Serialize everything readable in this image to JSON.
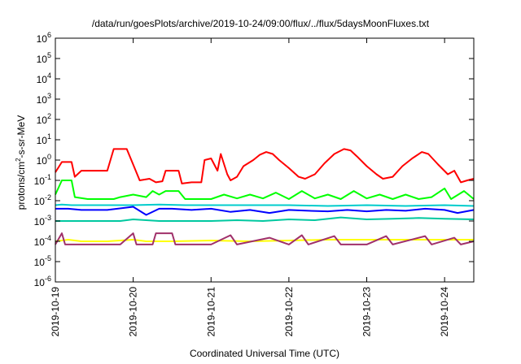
{
  "chart_data": {
    "type": "line",
    "title": "/data/run/goesPlots/archive/2019-10-24/09:00/flux/../flux/5daysMoonFluxes.txt",
    "xlabel": "Coordinated Universal Time (UTC)",
    "ylabel_parts": {
      "before": "protons/cm",
      "sup": "2",
      "after": "-s-sr-MeV"
    },
    "y_scale": "log",
    "ylim": [
      1e-06,
      1000000.0
    ],
    "y_ticks": [
      {
        "base": "10",
        "exp": "-6"
      },
      {
        "base": "10",
        "exp": "-5"
      },
      {
        "base": "10",
        "exp": "-4"
      },
      {
        "base": "10",
        "exp": "-3"
      },
      {
        "base": "10",
        "exp": "-2"
      },
      {
        "base": "10",
        "exp": "-1"
      },
      {
        "base": "10",
        "exp": "0"
      },
      {
        "base": "10",
        "exp": "1"
      },
      {
        "base": "10",
        "exp": "2"
      },
      {
        "base": "10",
        "exp": "3"
      },
      {
        "base": "10",
        "exp": "4"
      },
      {
        "base": "10",
        "exp": "5"
      },
      {
        "base": "10",
        "exp": "6"
      }
    ],
    "xlim": [
      "2019-10-19",
      "2019-10-24 09:00"
    ],
    "x_ticks": [
      "2019-10-19",
      "2019-10-20",
      "2019-10-21",
      "2019-10-22",
      "2019-10-23",
      "2019-10-24"
    ],
    "grid": false,
    "series": [
      {
        "color": "#ff0000",
        "points": [
          [
            "2019-10-19 00:00",
            0.25
          ],
          [
            "2019-10-19 02:00",
            0.8
          ],
          [
            "2019-10-19 05:00",
            0.8
          ],
          [
            "2019-10-19 06:00",
            0.15
          ],
          [
            "2019-10-19 08:00",
            0.3
          ],
          [
            "2019-10-19 16:00",
            0.3
          ],
          [
            "2019-10-19 18:00",
            3.5
          ],
          [
            "2019-10-19 22:00",
            3.5
          ],
          [
            "2019-10-20 00:00",
            0.6
          ],
          [
            "2019-10-20 02:00",
            0.1
          ],
          [
            "2019-10-20 05:00",
            0.12
          ],
          [
            "2019-10-20 07:00",
            0.08
          ],
          [
            "2019-10-20 09:00",
            0.09
          ],
          [
            "2019-10-20 10:00",
            0.3
          ],
          [
            "2019-10-20 14:00",
            0.3
          ],
          [
            "2019-10-20 15:00",
            0.07
          ],
          [
            "2019-10-20 18:00",
            0.08
          ],
          [
            "2019-10-20 21:00",
            0.08
          ],
          [
            "2019-10-20 22:00",
            1.0
          ],
          [
            "2019-10-21 00:00",
            1.2
          ],
          [
            "2019-10-21 02:00",
            0.3
          ],
          [
            "2019-10-21 03:00",
            2.0
          ],
          [
            "2019-10-21 05:00",
            0.2
          ],
          [
            "2019-10-21 06:00",
            0.1
          ],
          [
            "2019-10-21 08:00",
            0.15
          ],
          [
            "2019-10-21 10:00",
            0.5
          ],
          [
            "2019-10-21 13:00",
            1.0
          ],
          [
            "2019-10-21 15:00",
            1.8
          ],
          [
            "2019-10-21 17:00",
            2.5
          ],
          [
            "2019-10-21 19:00",
            2.0
          ],
          [
            "2019-10-21 21:00",
            1.0
          ],
          [
            "2019-10-22 00:00",
            0.4
          ],
          [
            "2019-10-22 03:00",
            0.15
          ],
          [
            "2019-10-22 05:00",
            0.12
          ],
          [
            "2019-10-22 08:00",
            0.2
          ],
          [
            "2019-10-22 11:00",
            0.7
          ],
          [
            "2019-10-22 14:00",
            2.0
          ],
          [
            "2019-10-22 17:00",
            3.5
          ],
          [
            "2019-10-22 19:00",
            3.0
          ],
          [
            "2019-10-22 21:00",
            1.5
          ],
          [
            "2019-10-23 00:00",
            0.5
          ],
          [
            "2019-10-23 03:00",
            0.2
          ],
          [
            "2019-10-23 05:00",
            0.12
          ],
          [
            "2019-10-23 08:00",
            0.15
          ],
          [
            "2019-10-23 11:00",
            0.5
          ],
          [
            "2019-10-23 14:00",
            1.2
          ],
          [
            "2019-10-23 17:00",
            2.5
          ],
          [
            "2019-10-23 19:00",
            2.0
          ],
          [
            "2019-10-23 22:00",
            0.6
          ],
          [
            "2019-10-24 01:00",
            0.2
          ],
          [
            "2019-10-24 03:00",
            0.3
          ],
          [
            "2019-10-24 05:00",
            0.08
          ],
          [
            "2019-10-24 07:00",
            0.1
          ],
          [
            "2019-10-24 09:00",
            0.12
          ]
        ]
      },
      {
        "color": "#00ff00",
        "points": [
          [
            "2019-10-19 00:00",
            0.02
          ],
          [
            "2019-10-19 02:00",
            0.1
          ],
          [
            "2019-10-19 05:00",
            0.1
          ],
          [
            "2019-10-19 06:00",
            0.015
          ],
          [
            "2019-10-19 10:00",
            0.012
          ],
          [
            "2019-10-19 18:00",
            0.012
          ],
          [
            "2019-10-19 20:00",
            0.015
          ],
          [
            "2019-10-20 00:00",
            0.02
          ],
          [
            "2019-10-20 04:00",
            0.015
          ],
          [
            "2019-10-20 06:00",
            0.03
          ],
          [
            "2019-10-20 08:00",
            0.02
          ],
          [
            "2019-10-20 10:00",
            0.03
          ],
          [
            "2019-10-20 14:00",
            0.03
          ],
          [
            "2019-10-20 16:00",
            0.012
          ],
          [
            "2019-10-21 00:00",
            0.012
          ],
          [
            "2019-10-21 04:00",
            0.02
          ],
          [
            "2019-10-21 08:00",
            0.013
          ],
          [
            "2019-10-21 12:00",
            0.02
          ],
          [
            "2019-10-21 16:00",
            0.013
          ],
          [
            "2019-10-21 20:00",
            0.025
          ],
          [
            "2019-10-22 00:00",
            0.012
          ],
          [
            "2019-10-22 04:00",
            0.03
          ],
          [
            "2019-10-22 08:00",
            0.013
          ],
          [
            "2019-10-22 12:00",
            0.02
          ],
          [
            "2019-10-22 16:00",
            0.012
          ],
          [
            "2019-10-22 20:00",
            0.03
          ],
          [
            "2019-10-23 00:00",
            0.013
          ],
          [
            "2019-10-23 04:00",
            0.02
          ],
          [
            "2019-10-23 08:00",
            0.012
          ],
          [
            "2019-10-23 12:00",
            0.02
          ],
          [
            "2019-10-23 16:00",
            0.012
          ],
          [
            "2019-10-23 20:00",
            0.015
          ],
          [
            "2019-10-24 00:00",
            0.04
          ],
          [
            "2019-10-24 02:00",
            0.012
          ],
          [
            "2019-10-24 06:00",
            0.03
          ],
          [
            "2019-10-24 09:00",
            0.012
          ]
        ]
      },
      {
        "color": "#0000ff",
        "points": [
          [
            "2019-10-19 00:00",
            0.004
          ],
          [
            "2019-10-19 04:00",
            0.004
          ],
          [
            "2019-10-19 08:00",
            0.0035
          ],
          [
            "2019-10-19 16:00",
            0.0035
          ],
          [
            "2019-10-20 00:00",
            0.005
          ],
          [
            "2019-10-20 04:00",
            0.002
          ],
          [
            "2019-10-20 08:00",
            0.004
          ],
          [
            "2019-10-20 12:00",
            0.004
          ],
          [
            "2019-10-20 18:00",
            0.0035
          ],
          [
            "2019-10-21 00:00",
            0.004
          ],
          [
            "2019-10-21 06:00",
            0.0028
          ],
          [
            "2019-10-21 12:00",
            0.0035
          ],
          [
            "2019-10-21 18:00",
            0.0025
          ],
          [
            "2019-10-22 00:00",
            0.0035
          ],
          [
            "2019-10-22 06:00",
            0.0032
          ],
          [
            "2019-10-22 12:00",
            0.003
          ],
          [
            "2019-10-22 18:00",
            0.0035
          ],
          [
            "2019-10-23 00:00",
            0.003
          ],
          [
            "2019-10-23 06:00",
            0.0035
          ],
          [
            "2019-10-23 12:00",
            0.0032
          ],
          [
            "2019-10-23 18:00",
            0.004
          ],
          [
            "2019-10-24 00:00",
            0.0035
          ],
          [
            "2019-10-24 04:00",
            0.0025
          ],
          [
            "2019-10-24 09:00",
            0.0035
          ]
        ]
      },
      {
        "color": "#00cccc",
        "points": [
          [
            "2019-10-19 00:00",
            0.006
          ],
          [
            "2019-10-19 02:00",
            0.0065
          ],
          [
            "2019-10-19 05:00",
            0.006
          ],
          [
            "2019-10-19 08:00",
            0.006
          ],
          [
            "2019-10-19 16:00",
            0.006
          ],
          [
            "2019-10-20 00:00",
            0.006
          ],
          [
            "2019-10-20 08:00",
            0.0065
          ],
          [
            "2019-10-20 16:00",
            0.006
          ],
          [
            "2019-10-21 00:00",
            0.006
          ],
          [
            "2019-10-21 12:00",
            0.006
          ],
          [
            "2019-10-22 00:00",
            0.006
          ],
          [
            "2019-10-22 12:00",
            0.0055
          ],
          [
            "2019-10-23 00:00",
            0.006
          ],
          [
            "2019-10-23 12:00",
            0.0055
          ],
          [
            "2019-10-24 00:00",
            0.006
          ],
          [
            "2019-10-24 09:00",
            0.0055
          ]
        ]
      },
      {
        "color": "#00c8a0",
        "points": [
          [
            "2019-10-19 00:00",
            0.001
          ],
          [
            "2019-10-19 12:00",
            0.001
          ],
          [
            "2019-10-19 20:00",
            0.001
          ],
          [
            "2019-10-20 00:00",
            0.0012
          ],
          [
            "2019-10-20 08:00",
            0.001
          ],
          [
            "2019-10-20 16:00",
            0.001
          ],
          [
            "2019-10-21 00:00",
            0.001
          ],
          [
            "2019-10-21 08:00",
            0.0011
          ],
          [
            "2019-10-21 16:00",
            0.001
          ],
          [
            "2019-10-22 00:00",
            0.0012
          ],
          [
            "2019-10-22 08:00",
            0.0011
          ],
          [
            "2019-10-22 16:00",
            0.0015
          ],
          [
            "2019-10-23 00:00",
            0.0012
          ],
          [
            "2019-10-23 08:00",
            0.0013
          ],
          [
            "2019-10-23 16:00",
            0.0014
          ],
          [
            "2019-10-24 00:00",
            0.0013
          ],
          [
            "2019-10-24 09:00",
            0.0012
          ]
        ]
      },
      {
        "color": "#ffff00",
        "points": [
          [
            "2019-10-19 00:00",
            0.0001
          ],
          [
            "2019-10-19 04:00",
            0.00012
          ],
          [
            "2019-10-19 08:00",
            0.0001
          ],
          [
            "2019-10-19 16:00",
            0.0001
          ],
          [
            "2019-10-20 00:00",
            0.00012
          ],
          [
            "2019-10-20 04:00",
            0.0001
          ],
          [
            "2019-10-20 12:00",
            0.0001
          ],
          [
            "2019-10-21 00:00",
            0.00011
          ],
          [
            "2019-10-21 12:00",
            0.0001
          ],
          [
            "2019-10-22 00:00",
            0.00011
          ],
          [
            "2019-10-22 12:00",
            0.00012
          ],
          [
            "2019-10-23 00:00",
            0.00012
          ],
          [
            "2019-10-23 12:00",
            0.00012
          ],
          [
            "2019-10-24 00:00",
            0.00012
          ],
          [
            "2019-10-24 09:00",
            0.00012
          ]
        ]
      },
      {
        "color": "#a0306a",
        "points": [
          [
            "2019-10-19 00:00",
            7e-05
          ],
          [
            "2019-10-19 02:00",
            0.00025
          ],
          [
            "2019-10-19 03:00",
            7e-05
          ],
          [
            "2019-10-19 12:00",
            7e-05
          ],
          [
            "2019-10-19 20:00",
            7e-05
          ],
          [
            "2019-10-20 00:00",
            0.00025
          ],
          [
            "2019-10-20 01:00",
            7e-05
          ],
          [
            "2019-10-20 06:00",
            7e-05
          ],
          [
            "2019-10-20 07:00",
            0.00025
          ],
          [
            "2019-10-20 12:00",
            0.00025
          ],
          [
            "2019-10-20 13:00",
            7e-05
          ],
          [
            "2019-10-21 00:00",
            7e-05
          ],
          [
            "2019-10-21 06:00",
            0.0002
          ],
          [
            "2019-10-21 08:00",
            7e-05
          ],
          [
            "2019-10-21 18:00",
            0.00015
          ],
          [
            "2019-10-22 00:00",
            7e-05
          ],
          [
            "2019-10-22 04:00",
            0.0002
          ],
          [
            "2019-10-22 06:00",
            7e-05
          ],
          [
            "2019-10-22 14:00",
            0.00018
          ],
          [
            "2019-10-22 16:00",
            7e-05
          ],
          [
            "2019-10-23 00:00",
            7e-05
          ],
          [
            "2019-10-23 06:00",
            0.00018
          ],
          [
            "2019-10-23 08:00",
            7e-05
          ],
          [
            "2019-10-23 18:00",
            0.00018
          ],
          [
            "2019-10-23 20:00",
            7e-05
          ],
          [
            "2019-10-24 03:00",
            0.00015
          ],
          [
            "2019-10-24 05:00",
            7e-05
          ],
          [
            "2019-10-24 09:00",
            0.0001
          ]
        ]
      }
    ]
  }
}
